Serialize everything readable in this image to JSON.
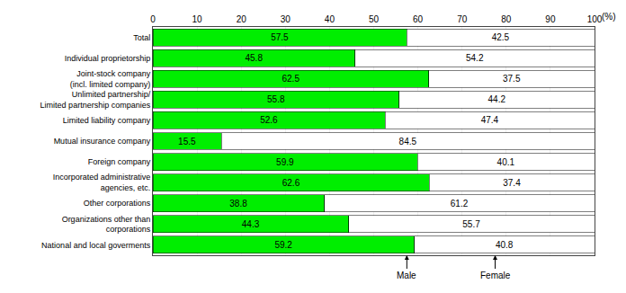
{
  "chart_data": {
    "type": "bar",
    "orientation": "horizontal",
    "stacked": true,
    "data_labels": true,
    "grid": true,
    "categories": [
      "Total",
      "Individual proprietorship",
      "Joint-stock company\n(incl. limited company)",
      "Unlimited partnership/\nLimited partnership companies",
      "Limited liability company",
      "Mutual insurance company",
      "Foreign company",
      "Incorporated administrative\nagencies, etc.",
      "Other corporations",
      "Organizations other than\ncorporations",
      "National and local goverments"
    ],
    "series": [
      {
        "name": "Male",
        "color": "#00ee00",
        "values": [
          57.5,
          45.8,
          62.5,
          55.8,
          52.6,
          15.5,
          59.9,
          62.6,
          38.8,
          44.3,
          59.2
        ]
      },
      {
        "name": "Female",
        "color": "#ffffff",
        "values": [
          42.5,
          54.2,
          37.5,
          44.2,
          47.4,
          84.5,
          40.1,
          37.4,
          61.2,
          55.7,
          40.8
        ]
      }
    ],
    "xlabel": "(%)",
    "xlim": [
      0,
      100
    ],
    "xticks": [
      0,
      10,
      20,
      30,
      40,
      50,
      60,
      70,
      80,
      90,
      100
    ],
    "annotations": [
      {
        "text": "Male",
        "x": 57.5
      },
      {
        "text": "Female",
        "x": 77.5
      }
    ]
  }
}
